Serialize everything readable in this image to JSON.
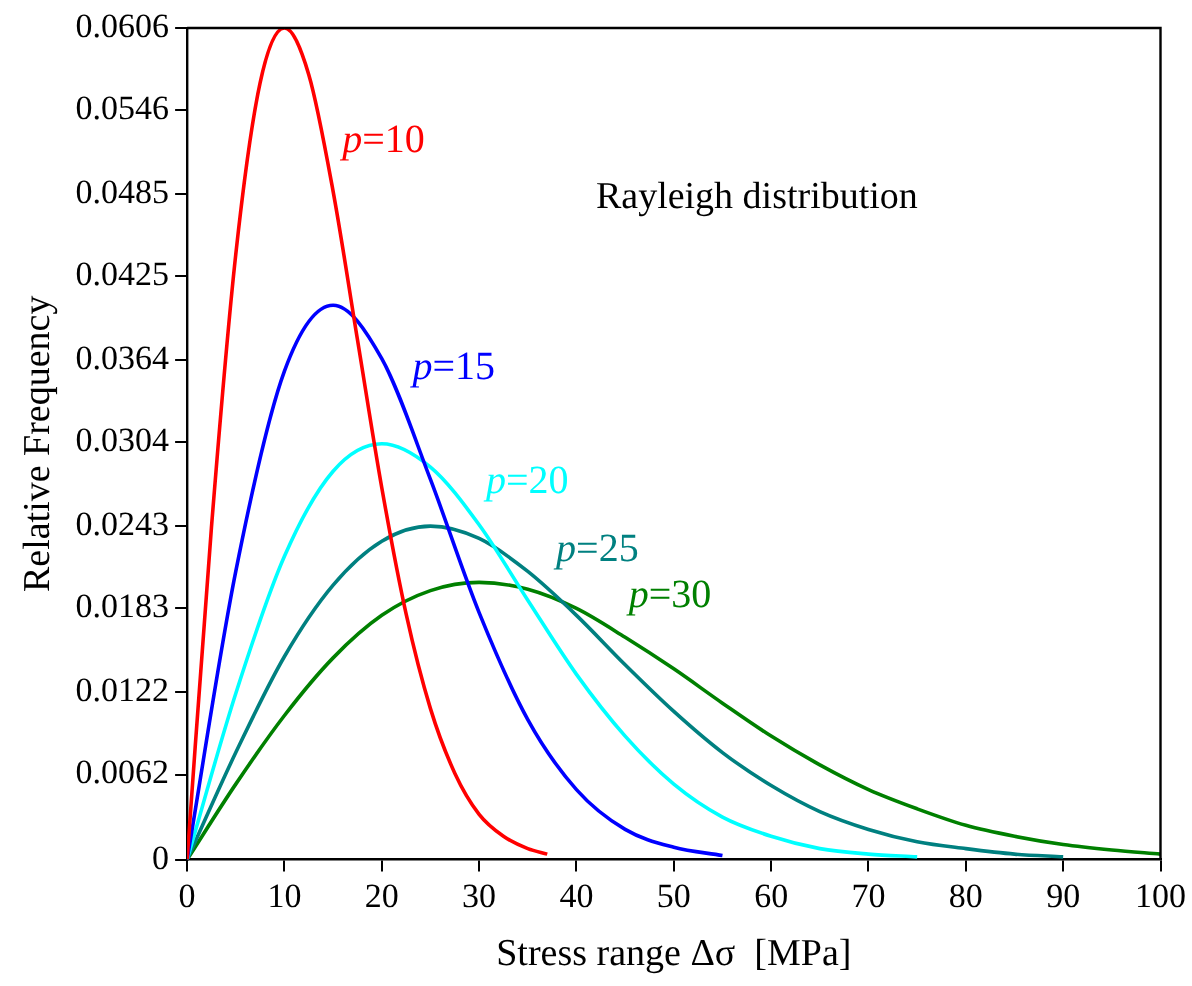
{
  "chart_data": {
    "type": "line",
    "xlabel": "Stress range Δσ  [MPa]",
    "ylabel": "Relative Frequency",
    "xlim": [
      0,
      100
    ],
    "xticks": [
      0,
      10,
      20,
      30,
      40,
      50,
      60,
      70,
      80,
      90,
      100
    ],
    "ylim": [
      0,
      0.0606
    ],
    "yticks": [
      0,
      0.0062,
      0.0122,
      0.0183,
      0.0243,
      0.0304,
      0.0364,
      0.0425,
      0.0485,
      0.0546,
      0.0606
    ],
    "grid": false,
    "legend": false,
    "marker": "none",
    "line_style": "solid",
    "series": [
      {
        "name": "p=10",
        "color": "#ff0000",
        "x": [
          0,
          2.5,
          5,
          7.5,
          10,
          12.5,
          15,
          17.5,
          20,
          22.5,
          25,
          27.5,
          30,
          32.5,
          35,
          37
        ],
        "values": [
          0,
          0.0242,
          0.0441,
          0.0566,
          0.0606,
          0.0572,
          0.0487,
          0.0379,
          0.0271,
          0.0179,
          0.011,
          0.0063,
          0.0033,
          0.0017,
          0.0008,
          0.0004
        ]
      },
      {
        "name": "p=15",
        "color": "#0000ff",
        "x": [
          0,
          5,
          10,
          15,
          20,
          25,
          30,
          35,
          40,
          45,
          50,
          55
        ],
        "values": [
          0,
          0.021,
          0.0356,
          0.0404,
          0.0365,
          0.0277,
          0.018,
          0.0102,
          0.0051,
          0.0022,
          0.0009,
          0.0003
        ]
      },
      {
        "name": "p=20",
        "color": "#00ffff",
        "x": [
          0,
          5,
          10,
          15,
          20,
          25,
          30,
          35,
          40,
          45,
          50,
          55,
          60,
          65,
          70,
          75
        ],
        "values": [
          0,
          0.0121,
          0.0221,
          0.0283,
          0.0303,
          0.0286,
          0.0244,
          0.0189,
          0.0135,
          0.009,
          0.0055,
          0.0031,
          0.0017,
          0.0008,
          0.0004,
          0.0002
        ]
      },
      {
        "name": "p=25",
        "color": "#008080",
        "x": [
          0,
          5,
          10,
          15,
          20,
          25,
          30,
          35,
          40,
          45,
          50,
          55,
          60,
          65,
          70,
          75,
          80,
          85,
          90
        ],
        "values": [
          0,
          0.0078,
          0.0148,
          0.02,
          0.0232,
          0.0243,
          0.0234,
          0.021,
          0.0178,
          0.0142,
          0.0108,
          0.0078,
          0.0054,
          0.0035,
          0.0022,
          0.0013,
          0.0008,
          0.0004,
          0.0002
        ]
      },
      {
        "name": "p=30",
        "color": "#008000",
        "x": [
          0,
          5,
          10,
          15,
          20,
          25,
          30,
          35,
          40,
          45,
          50,
          55,
          60,
          65,
          70,
          75,
          80,
          85,
          90,
          95,
          100
        ],
        "values": [
          0,
          0.0055,
          0.0105,
          0.0147,
          0.0178,
          0.0196,
          0.0202,
          0.0197,
          0.0183,
          0.0162,
          0.0139,
          0.0114,
          0.009,
          0.0069,
          0.0051,
          0.0037,
          0.0025,
          0.0017,
          0.0011,
          0.0007,
          0.0004
        ]
      }
    ],
    "annotations": [
      "Rayleigh distribution"
    ]
  }
}
